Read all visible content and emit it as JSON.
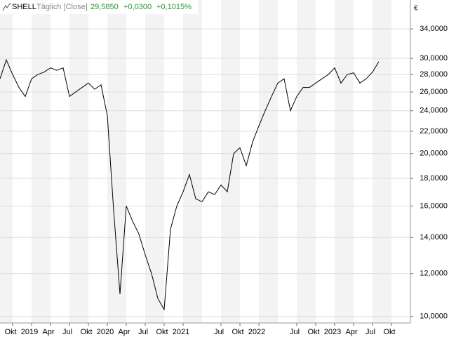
{
  "chart_data": {
    "type": "line",
    "title": "SHELL",
    "subtitle": "Täglich [Close]",
    "annotations": [
      "29,5850",
      "+0,0300",
      "+0,1015%"
    ],
    "currency": "€",
    "x": [
      "2018-08",
      "2018-09",
      "2018-10",
      "2018-11",
      "2018-12",
      "2019-01",
      "2019-02",
      "2019-03",
      "2019-04",
      "2019-05",
      "2019-06",
      "2019-07",
      "2019-08",
      "2019-09",
      "2019-10",
      "2019-11",
      "2019-12",
      "2020-01",
      "2020-02",
      "2020-03",
      "2020-04",
      "2020-05",
      "2020-06",
      "2020-07",
      "2020-08",
      "2020-09",
      "2020-10",
      "2020-11",
      "2020-12",
      "2021-01",
      "2021-02",
      "2021-03",
      "2021-04",
      "2021-05",
      "2021-06",
      "2021-07",
      "2021-08",
      "2021-09",
      "2021-10",
      "2021-11",
      "2021-12",
      "2022-01",
      "2022-02",
      "2022-03",
      "2022-04",
      "2022-05",
      "2022-06",
      "2022-07",
      "2022-08",
      "2022-09",
      "2022-10",
      "2022-11",
      "2022-12",
      "2023-01",
      "2023-02",
      "2023-03",
      "2023-04",
      "2023-05",
      "2023-06",
      "2023-07",
      "2023-08"
    ],
    "series": [
      {
        "name": "SHELL",
        "color": "#000000",
        "values": [
          27.5,
          29.8,
          28.0,
          26.5,
          25.5,
          27.5,
          28.0,
          28.3,
          28.8,
          28.5,
          28.8,
          25.5,
          26.0,
          26.5,
          27.0,
          26.3,
          26.8,
          23.5,
          15.7,
          11.0,
          16.0,
          15.0,
          14.2,
          13.0,
          12.0,
          10.8,
          10.3,
          14.5,
          16.0,
          17.0,
          18.3,
          16.5,
          16.3,
          17.0,
          16.8,
          17.5,
          17.0,
          20.0,
          20.5,
          19.0,
          21.0,
          22.5,
          24.0,
          25.5,
          27.0,
          27.5,
          24.0,
          25.5,
          26.5,
          26.5,
          27.0,
          27.5,
          28.0,
          28.8,
          27.0,
          28.0,
          28.2,
          27.0,
          27.5,
          28.3,
          29.585
        ]
      }
    ],
    "xlim": [
      "2018-08",
      "2024-01"
    ],
    "xticks": [
      {
        "value": "2018-10",
        "label": "Okt"
      },
      {
        "value": "2019-01",
        "label": "2019"
      },
      {
        "value": "2019-04",
        "label": "Apr"
      },
      {
        "value": "2019-07",
        "label": "Jul"
      },
      {
        "value": "2019-10",
        "label": "Okt"
      },
      {
        "value": "2020-01",
        "label": "2020"
      },
      {
        "value": "2020-04",
        "label": "Apr"
      },
      {
        "value": "2020-07",
        "label": "Jul"
      },
      {
        "value": "2020-10",
        "label": "Okt"
      },
      {
        "value": "2021-01",
        "label": "2021"
      },
      {
        "value": "2021-07",
        "label": "Jul"
      },
      {
        "value": "2021-10",
        "label": "Okt"
      },
      {
        "value": "2022-01",
        "label": "2022"
      },
      {
        "value": "2022-07",
        "label": "Jul"
      },
      {
        "value": "2022-10",
        "label": "Okt"
      },
      {
        "value": "2023-01",
        "label": "2023"
      },
      {
        "value": "2023-04",
        "label": "Apr"
      },
      {
        "value": "2023-07",
        "label": "Jul"
      },
      {
        "value": "2023-10",
        "label": "Okt"
      }
    ],
    "ylim": [
      9.73,
      36
    ],
    "yscale": "log",
    "yticks": [
      {
        "value": 10,
        "label": "10,0000"
      },
      {
        "value": 12,
        "label": "12,0000"
      },
      {
        "value": 14,
        "label": "14,0000"
      },
      {
        "value": 16,
        "label": "16,0000"
      },
      {
        "value": 18,
        "label": "18,0000"
      },
      {
        "value": 20,
        "label": "20,0000"
      },
      {
        "value": 22,
        "label": "22,0000"
      },
      {
        "value": 24,
        "label": "24,0000"
      },
      {
        "value": 26,
        "label": "26,0000"
      },
      {
        "value": 28,
        "label": "28,0000"
      },
      {
        "value": 30,
        "label": "30,0000"
      },
      {
        "value": 34,
        "label": "34,0000"
      }
    ],
    "grid": true
  }
}
